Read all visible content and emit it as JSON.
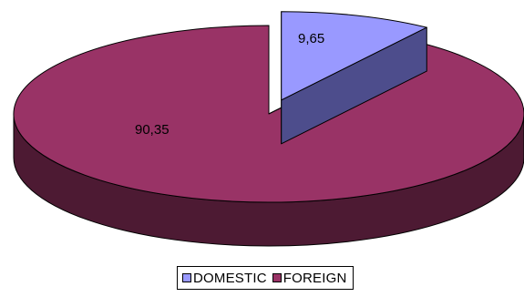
{
  "chart_data": {
    "type": "pie",
    "three_d": true,
    "exploded_slice": "DOMESTIC",
    "categories": [
      "DOMESTIC",
      "FOREIGN"
    ],
    "values": [
      9.65,
      90.35
    ],
    "data_labels": [
      "9,65",
      "90,35"
    ],
    "colors": {
      "DOMESTIC": {
        "top": "#9999ff",
        "side": "#4d4d8c"
      },
      "FOREIGN": {
        "top": "#993366",
        "side": "#4d1a33"
      }
    },
    "legend": {
      "placement": "bottom",
      "items": [
        {
          "label": "DOMESTIC",
          "color": "#9999ff"
        },
        {
          "label": "FOREIGN",
          "color": "#993366"
        }
      ]
    }
  }
}
